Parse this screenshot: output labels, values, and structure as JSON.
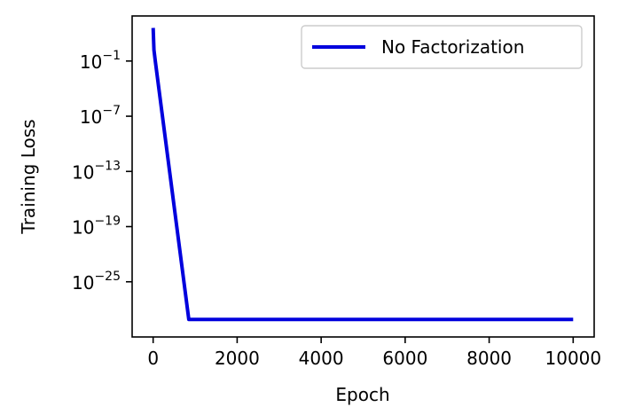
{
  "chart_data": {
    "type": "line",
    "xlabel": "Epoch",
    "ylabel": "Training Loss",
    "xlim": [
      -500,
      10500
    ],
    "ylim_log10": [
      -31,
      3.9
    ],
    "y_scale": "log",
    "x_ticks": [
      0,
      2000,
      4000,
      6000,
      8000,
      10000
    ],
    "x_tick_labels": [
      "0",
      "2000",
      "4000",
      "6000",
      "8000",
      "10000"
    ],
    "y_ticks_log10": [
      -1,
      -7,
      -13,
      -19,
      -25
    ],
    "y_tick_labels": [
      {
        "base": "10",
        "exp": "−1"
      },
      {
        "base": "10",
        "exp": "−7"
      },
      {
        "base": "10",
        "exp": "−13"
      },
      {
        "base": "10",
        "exp": "−19"
      },
      {
        "base": "10",
        "exp": "−25"
      }
    ],
    "legend_position": "top-right",
    "grid": false,
    "series": [
      {
        "name": "No Factorization",
        "color": "#0000dd",
        "x": [
          0,
          20,
          50,
          850,
          870,
          10000
        ],
        "y_log10": [
          2.6,
          0.2,
          -1.0,
          -29.1,
          -29.1,
          -29.1
        ]
      }
    ]
  }
}
